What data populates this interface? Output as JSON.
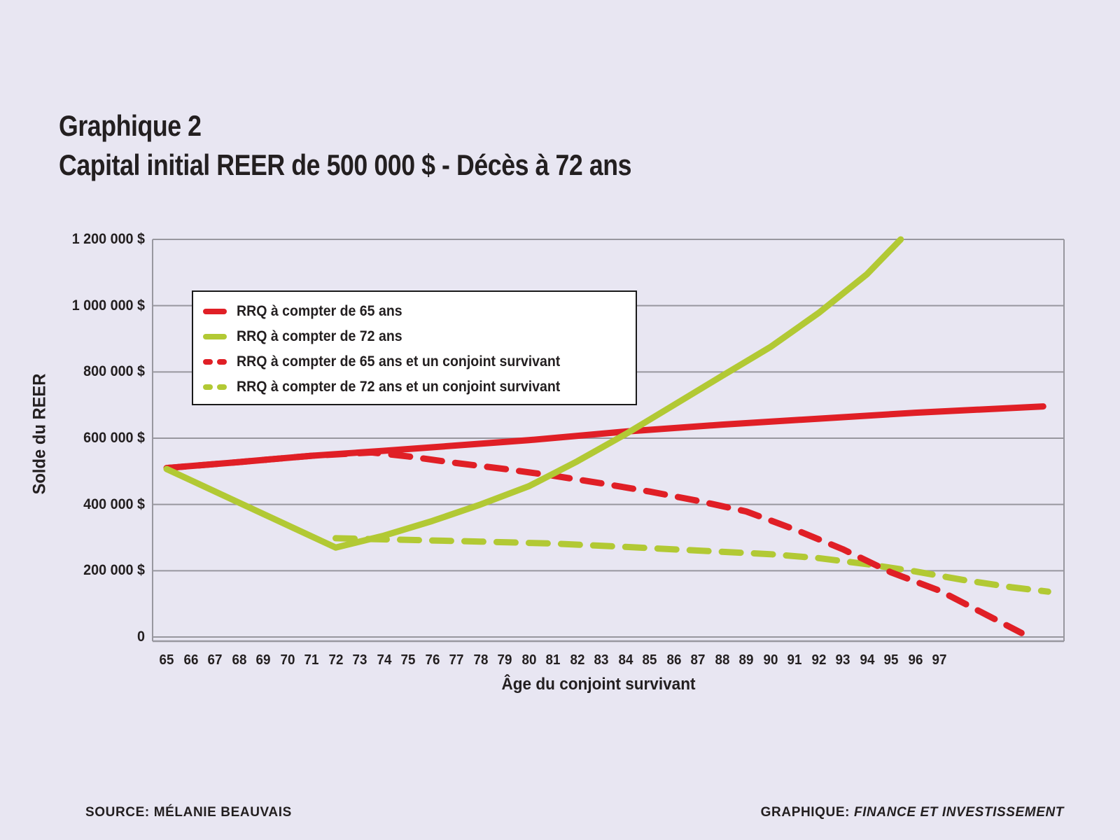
{
  "title": {
    "line1": "Graphique 2",
    "line2": "Capital initial REER de 500 000 $ - Décès à 72 ans"
  },
  "y_axis": {
    "title": "Solde du REER",
    "ticks": [
      {
        "label": "1 200 000 $",
        "value": 1200000
      },
      {
        "label": "1 000 000 $",
        "value": 1000000
      },
      {
        "label": "800 000 $",
        "value": 800000
      },
      {
        "label": "600 000 $",
        "value": 600000
      },
      {
        "label": "400 000 $",
        "value": 400000
      },
      {
        "label": "200 000 $",
        "value": 200000
      },
      {
        "label": "0",
        "value": 0
      }
    ]
  },
  "x_axis": {
    "title": "Âge du conjoint survivant",
    "ticks": [
      "65",
      "66",
      "67",
      "68",
      "69",
      "70",
      "71",
      "72",
      "73",
      "74",
      "75",
      "76",
      "77",
      "78",
      "79",
      "80",
      "81",
      "82",
      "83",
      "84",
      "85",
      "86",
      "87",
      "88",
      "89",
      "90",
      "91",
      "92",
      "93",
      "94",
      "95",
      "96",
      "97"
    ]
  },
  "legend": {
    "items": [
      {
        "label": "RRQ à compter de 65 ans",
        "color": "#e01f26",
        "dashed": false
      },
      {
        "label": "RRQ à compter de 72 ans",
        "color": "#b2c934",
        "dashed": false
      },
      {
        "label": "RRQ à compter de 65 ans et un conjoint survivant",
        "color": "#e01f26",
        "dashed": true
      },
      {
        "label": "RRQ à compter de 72 ans et un conjoint survivant",
        "color": "#b2c934",
        "dashed": true
      }
    ]
  },
  "footer": {
    "source_label": "SOURCE:",
    "source_value": "MÉLANIE BEAUVAIS",
    "credit_label": "GRAPHIQUE:",
    "credit_value": "FINANCE ET INVESTISSEMENT"
  },
  "colors": {
    "background": "#e8e6f2",
    "red": "#e01f26",
    "green": "#b2c934",
    "grid": "#98979f",
    "text": "#231f20"
  },
  "chart_data": {
    "type": "line",
    "title": "Capital initial REER de 500 000 $ - Décès à 72 ans",
    "xlabel": "Âge du conjoint survivant",
    "ylabel": "Solde du REER",
    "xlim": [
      64.4,
      102.2
    ],
    "ylim": [
      0,
      1200000
    ],
    "x_tick_labels_range": [
      65,
      97
    ],
    "grid": "horizontal",
    "legend_position": "upper-left-inside",
    "series": [
      {
        "name": "RRQ à compter de 65 ans",
        "color": "#e01f26",
        "style": "solid",
        "points": [
          [
            65,
            510000
          ],
          [
            68,
            528000
          ],
          [
            71,
            547000
          ],
          [
            74,
            562000
          ],
          [
            77,
            578000
          ],
          [
            80,
            594000
          ],
          [
            84,
            620000
          ],
          [
            88,
            641000
          ],
          [
            92,
            659000
          ],
          [
            96,
            677000
          ],
          [
            101.3,
            696000
          ]
        ]
      },
      {
        "name": "RRQ à compter de 72 ans et un conjoint survivant",
        "color": "#b2c934",
        "style": "dashed",
        "points": [
          [
            72,
            298000
          ],
          [
            75,
            293000
          ],
          [
            78,
            288000
          ],
          [
            81,
            282000
          ],
          [
            84,
            272000
          ],
          [
            87,
            261000
          ],
          [
            90,
            250000
          ],
          [
            92,
            238000
          ],
          [
            94,
            220000
          ],
          [
            96,
            198000
          ],
          [
            98,
            172000
          ],
          [
            100,
            150000
          ],
          [
            101.5,
            137000
          ]
        ]
      },
      {
        "name": "RRQ à compter de 65 ans et un conjoint survivant",
        "color": "#e01f26",
        "style": "dashed",
        "points": [
          [
            65,
            510000
          ],
          [
            68,
            528000
          ],
          [
            71,
            547000
          ],
          [
            73.5,
            557000
          ],
          [
            75,
            545000
          ],
          [
            77,
            525000
          ],
          [
            79,
            507000
          ],
          [
            81,
            487000
          ],
          [
            83,
            464000
          ],
          [
            85,
            439000
          ],
          [
            87,
            411000
          ],
          [
            89,
            379000
          ],
          [
            91,
            325000
          ],
          [
            93,
            265000
          ],
          [
            95,
            195000
          ],
          [
            97,
            140000
          ],
          [
            99,
            65000
          ],
          [
            100.4,
            12000
          ]
        ]
      },
      {
        "name": "RRQ à compter de 72 ans",
        "color": "#b2c934",
        "style": "solid",
        "points": [
          [
            65,
            507000
          ],
          [
            72,
            270000
          ],
          [
            74,
            306000
          ],
          [
            76,
            350000
          ],
          [
            78,
            400000
          ],
          [
            80,
            455000
          ],
          [
            82,
            530000
          ],
          [
            84,
            612000
          ],
          [
            86,
            700000
          ],
          [
            88,
            788000
          ],
          [
            90,
            875000
          ],
          [
            92,
            978000
          ],
          [
            94,
            1095000
          ],
          [
            95.4,
            1200000
          ]
        ]
      }
    ]
  }
}
